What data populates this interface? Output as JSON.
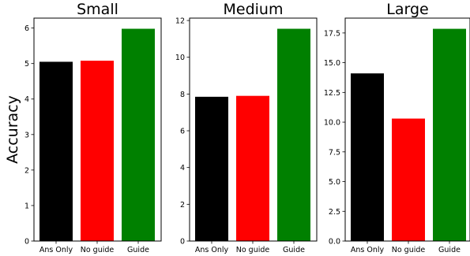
{
  "chart_data": [
    {
      "type": "bar",
      "title": "Small",
      "ylabel": "Accuracy",
      "categories": [
        "Ans Only",
        "No guide",
        "Guide"
      ],
      "values": [
        5.05,
        5.08,
        5.98
      ],
      "colors": [
        "#000000",
        "#ff0000",
        "#008000"
      ],
      "ylim": [
        0,
        6.28
      ],
      "yticks": [
        0,
        1,
        2,
        3,
        4,
        5,
        6
      ],
      "ytick_labels": [
        "0",
        "1",
        "2",
        "3",
        "4",
        "5",
        "6"
      ]
    },
    {
      "type": "bar",
      "title": "Medium",
      "ylabel": "",
      "categories": [
        "Ans Only",
        "No guide",
        "Guide"
      ],
      "values": [
        7.85,
        7.9,
        11.55
      ],
      "colors": [
        "#000000",
        "#ff0000",
        "#008000"
      ],
      "ylim": [
        0,
        12.13
      ],
      "yticks": [
        0,
        2,
        4,
        6,
        8,
        10,
        12
      ],
      "ytick_labels": [
        "0",
        "2",
        "4",
        "6",
        "8",
        "10",
        "12"
      ]
    },
    {
      "type": "bar",
      "title": "Large",
      "ylabel": "",
      "categories": [
        "Ans Only",
        "No guide",
        "Guide"
      ],
      "values": [
        14.1,
        10.3,
        17.85
      ],
      "colors": [
        "#000000",
        "#ff0000",
        "#008000"
      ],
      "ylim": [
        0,
        18.75
      ],
      "yticks": [
        0,
        2.5,
        5,
        7.5,
        10,
        12.5,
        15,
        17.5
      ],
      "ytick_labels": [
        "0.0",
        "2.5",
        "5.0",
        "7.5",
        "10.0",
        "12.5",
        "15.0",
        "17.5"
      ]
    }
  ]
}
